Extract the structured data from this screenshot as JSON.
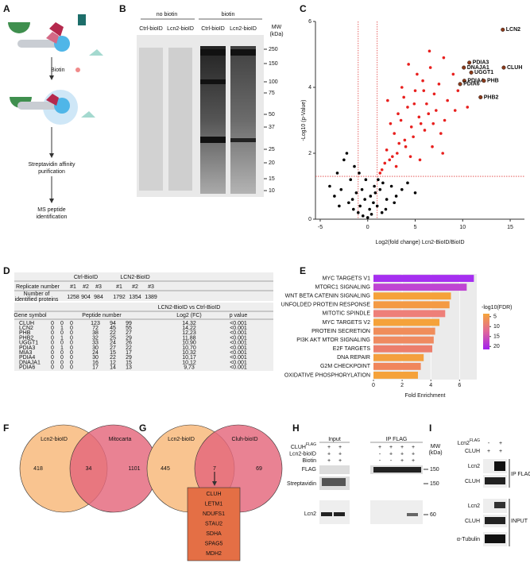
{
  "panel_labels": [
    "A",
    "B",
    "C",
    "D",
    "E",
    "F",
    "G",
    "H",
    "I"
  ],
  "panel_a": {
    "biotin": "Biotin",
    "step1": [
      "Streptavidin affinity",
      "purification"
    ],
    "step2": [
      "MS peptide",
      "identification"
    ]
  },
  "panel_b": {
    "groups": [
      "no biotin",
      "biotin"
    ],
    "lanes": [
      "Ctrl-bioID",
      "Lcn2-bioID",
      "Ctrl-bioID",
      "Lcn2-bioID"
    ],
    "mw_label": [
      "MW",
      "(kDa)"
    ],
    "markers": [
      250,
      150,
      100,
      75,
      50,
      37,
      25,
      20,
      15,
      10
    ]
  },
  "chart_data": [
    {
      "type": "scatter",
      "y_label": "-Log10 (p-Value)",
      "x_label": "Log2(fold change) Lcn2-BioID/BioID",
      "xlim": [
        -5.5,
        16.5
      ],
      "ylim": [
        0,
        6
      ],
      "xticks": [
        -5,
        0,
        5,
        10,
        15
      ],
      "yticks": [
        0,
        2,
        4,
        6
      ],
      "thresholds": {
        "x": [
          -1,
          1
        ],
        "y": 1.3,
        "color": "#e0403f"
      },
      "series": [
        {
          "color": "#e8201e",
          "x": [
            1.5,
            2.0,
            2.3,
            2.8,
            3.1,
            3.5,
            3.9,
            4.2,
            4.6,
            5.0,
            5.4,
            5.8,
            6.2,
            6.6,
            7.0,
            7.5,
            8.0,
            8.4,
            9.0,
            9.5,
            1.8,
            2.6,
            3.3,
            4.0,
            4.8,
            5.6,
            6.4,
            7.2,
            8.1,
            2.1,
            3.0,
            3.8,
            4.5,
            5.2,
            6.0,
            6.8,
            7.7,
            1.3,
            2.4,
            3.6,
            4.3,
            5.5,
            6.5,
            7.9,
            9.2,
            10.5,
            3.2,
            4.9,
            5.9,
            6.9
          ],
          "values": [
            1.5,
            2.1,
            1.8,
            2.6,
            2.0,
            3.0,
            2.4,
            3.4,
            2.8,
            3.9,
            3.1,
            4.2,
            3.5,
            4.6,
            3.8,
            4.1,
            4.9,
            3.6,
            4.4,
            3.9,
            1.7,
            1.9,
            2.3,
            2.2,
            2.5,
            2.9,
            3.2,
            3.3,
            3.0,
            3.6,
            1.6,
            3.7,
            1.9,
            4.4,
            2.7,
            2.2,
            2.6,
            1.4,
            2.9,
            4.0,
            4.7,
            1.8,
            5.1,
            2.0,
            3.3,
            3.4,
            3.2,
            3.5,
            3.9,
            2.9
          ]
        },
        {
          "color": "#000000",
          "x": [
            -4.0,
            -3.5,
            -3.2,
            -2.8,
            -2.5,
            -2.0,
            -1.8,
            -1.5,
            -1.2,
            -1.0,
            -0.8,
            -0.5,
            -0.3,
            0.0,
            0.2,
            0.4,
            0.6,
            0.8,
            1.0,
            1.3,
            1.6,
            2.0,
            2.5,
            3.0,
            3.6,
            -2.2,
            -1.4,
            -0.6,
            0.3,
            1.1,
            1.9,
            2.8,
            -3.0,
            -0.2,
            0.7,
            1.5,
            -1.6,
            4.2,
            5.0,
            -0.9
          ],
          "values": [
            1.0,
            0.7,
            1.4,
            0.9,
            1.8,
            0.5,
            1.2,
            0.3,
            0.8,
            0.2,
            0.4,
            0.1,
            0.6,
            0.05,
            0.3,
            0.15,
            0.5,
            0.8,
            0.4,
            0.9,
            1.1,
            0.6,
            1.0,
            0.7,
            0.9,
            2.0,
            1.6,
            0.9,
            0.7,
            1.2,
            0.3,
            0.5,
            0.4,
            1.2,
            1.0,
            0.2,
            0.6,
            1.1,
            0.8,
            1.4
          ]
        }
      ],
      "labeled_points": {
        "color": "#8b3a1a",
        "names": [
          "LCN2",
          "PDIA3",
          "DNAJA1",
          "CLUH",
          "UGGT1",
          "PDIA4",
          "PHB",
          "PDIA6",
          "PHB2"
        ],
        "x": [
          14.22,
          10.7,
          10.12,
          14.32,
          10.9,
          10.17,
          12.23,
          9.73,
          11.88
        ],
        "values": [
          5.75,
          4.75,
          4.6,
          4.6,
          4.45,
          4.2,
          4.2,
          4.1,
          3.7
        ]
      }
    },
    {
      "type": "barh",
      "categories": [
        "MYC TARGETS V1",
        "MTORC1 SIGNALING",
        "WNT BETA CATENIN SIGNALING",
        "UNFOLDED PROTEIN RESPONSE",
        "MITOTIC SPINDLE",
        "MYC TARGETS V2",
        "PROTEIN SECRETION",
        "PI3K AKT MTOR SIGNALING",
        "E2F TARGETS",
        "DNA REPAIR",
        "G2M CHECKPOINT",
        "OXIDATIVE PHOSPHORYLATION"
      ],
      "values": [
        7.0,
        6.5,
        5.4,
        5.3,
        5.0,
        4.6,
        4.3,
        4.2,
        4.1,
        3.5,
        3.3,
        3.1
      ],
      "colors": [
        "#a62ff0",
        "#bf45d2",
        "#f5a23a",
        "#f49a44",
        "#ee7f79",
        "#f5a23a",
        "#f08d5a",
        "#ef8a60",
        "#ec7e6c",
        "#f4a03e",
        "#f0865c",
        "#f5a23a"
      ],
      "xlim": [
        0,
        7.2
      ],
      "xticks": [
        0,
        2,
        4,
        6
      ],
      "x_label": "Fold Enrichment",
      "colorbar": {
        "title": "-log10(FDR)",
        "lim": [
          3.5,
          21.5
        ],
        "ticks": [
          5,
          10,
          15,
          20
        ],
        "colors": [
          "#f6a53a",
          "#e0679a",
          "#a020f0"
        ]
      }
    }
  ],
  "table": {
    "header_groups": [
      "Ctrl-BioID",
      "LCN2-BioID"
    ],
    "replicate_label": "Replicate number",
    "replicates": [
      "#1",
      "#2",
      "#3",
      "#1",
      "#2",
      "#3"
    ],
    "identified_label": [
      "Number of",
      "identified proteins"
    ],
    "identified": [
      1258,
      904,
      984,
      1792,
      1354,
      1389
    ],
    "comparison": "LCN2-BioID vs Ctrl-BioID",
    "columns": [
      "Gene symbol",
      "Peptide number",
      "Log2 (FC)",
      "p value"
    ],
    "rows": [
      [
        "CLUH",
        0,
        0,
        0,
        123,
        94,
        99,
        "14,32",
        "<0.001"
      ],
      [
        "LCN2",
        0,
        1,
        0,
        72,
        45,
        55,
        "14,22",
        "<0.001"
      ],
      [
        "PHB",
        0,
        0,
        0,
        38,
        22,
        27,
        "12,23",
        "<0.001"
      ],
      [
        "PHB2",
        0,
        1,
        0,
        32,
        25,
        29,
        "11,88",
        "<0.001"
      ],
      [
        "UGGT1",
        0,
        0,
        0,
        33,
        24,
        26,
        "10,90",
        "<0.001"
      ],
      [
        "PDIA3",
        0,
        1,
        0,
        30,
        27,
        22,
        "10,70",
        "<0.001"
      ],
      [
        "MIA3",
        0,
        0,
        0,
        24,
        15,
        17,
        "10,32",
        "<0.001"
      ],
      [
        "PDIA4",
        0,
        0,
        0,
        30,
        22,
        29,
        "10,17",
        "<0.001"
      ],
      [
        "DNAJA1",
        0,
        0,
        0,
        16,
        12,
        15,
        "10,12",
        "<0.001"
      ],
      [
        "PDIA6",
        0,
        0,
        0,
        17,
        14,
        13,
        "9,73",
        "<0.001"
      ]
    ]
  },
  "venn_f": {
    "sets": [
      "Lcn2-bioID",
      "Mitocarta"
    ],
    "counts": [
      418,
      34,
      1101
    ],
    "colors": [
      "#f9c490",
      "#e4677b"
    ]
  },
  "venn_g": {
    "sets": [
      "Lcn2-bioID",
      "Cluh-bioID"
    ],
    "counts": [
      445,
      7,
      69
    ],
    "colors": [
      "#f9c490",
      "#e4677b"
    ],
    "shared_genes": [
      "CLUH",
      "LETM1",
      "NDUFS1",
      "STAU2",
      "SDHA",
      "SPAG5",
      "MDH2"
    ]
  },
  "panel_h": {
    "groups": [
      "Input",
      "IP FLAG"
    ],
    "conditions": [
      {
        "label": "CLUH",
        "sup": "FLAG",
        "signs": [
          "+",
          "+",
          "+",
          "+",
          "+",
          "+"
        ]
      },
      {
        "label": "Lcn2-bioID",
        "signs": [
          "+",
          "+",
          "-",
          "+",
          "+",
          "+"
        ]
      },
      {
        "label": "Biotin",
        "signs": [
          "+",
          "+",
          "-",
          "-",
          "+",
          "+"
        ]
      }
    ],
    "bands": [
      "FLAG",
      "Streptavidin",
      "Lcn2"
    ],
    "mw_label": [
      "MW",
      "(kDa)"
    ],
    "mw": [
      150,
      150,
      60
    ]
  },
  "panel_i": {
    "conditions": [
      {
        "label": "Lcn2",
        "sup": "FLAG",
        "signs": [
          "-",
          "+"
        ]
      },
      {
        "label": "CLUH",
        "signs": [
          "+",
          "+"
        ]
      }
    ],
    "bands": [
      "Lcn2",
      "CLUH",
      "Lcn2",
      "CLUH",
      "α-Tubulin"
    ],
    "sections": [
      "IP FLAG",
      "INPUT"
    ]
  }
}
